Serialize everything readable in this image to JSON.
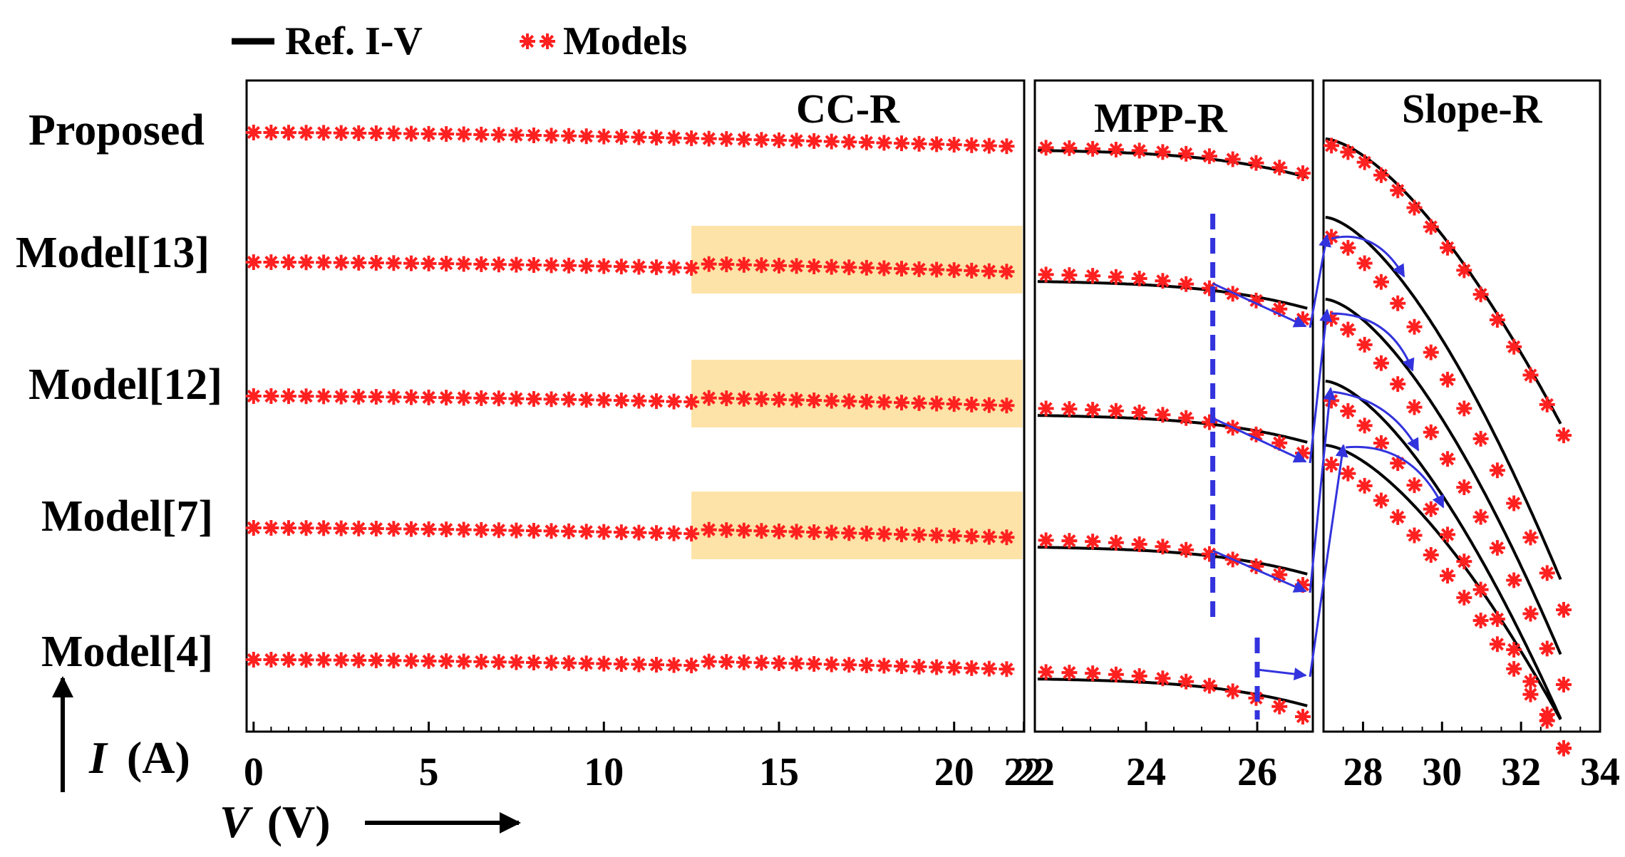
{
  "chart_data": {
    "type": "line",
    "legend": {
      "placement": "top-left",
      "entries": [
        {
          "key": "ref",
          "label": "Ref. I-V",
          "color": "#000000",
          "style": "line"
        },
        {
          "key": "models",
          "label": "Models",
          "color": "#ff2020",
          "style": "star-markers"
        }
      ]
    },
    "xlabel": "V (V)",
    "ylabel": "I (A)",
    "xlabel_var": "V",
    "xlabel_unit": "(V)",
    "ylabel_var": "I",
    "ylabel_unit": "(A)",
    "panels": [
      {
        "title": "CC-R",
        "xlim": [
          -0.2,
          22
        ],
        "ticks": [
          0,
          5,
          10,
          15,
          20,
          22
        ]
      },
      {
        "title": "MPP-R",
        "xlim": [
          22,
          27
        ],
        "ticks": [
          22,
          24,
          26
        ]
      },
      {
        "title": "Slope-R",
        "xlim": [
          27,
          34
        ],
        "ticks": [
          28,
          30,
          32,
          34
        ]
      }
    ],
    "grid": false,
    "y_tick_labels_shown": false,
    "series": [
      {
        "name": "Proposed"
      },
      {
        "name": "Model[13]"
      },
      {
        "name": "Model[12]"
      },
      {
        "name": "Model[7]"
      },
      {
        "name": "Model[4]"
      }
    ],
    "highlight": {
      "x_range": [
        12.5,
        22
      ],
      "panel": "CC-R",
      "rows": [
        "Model[13]",
        "Model[12]",
        "Model[7]"
      ],
      "color": "#fde3a7"
    },
    "dashed_markers": [
      {
        "x": 25.2,
        "panel": "MPP-R",
        "color": "#3333dd",
        "span_rows": [
          "Model[13]",
          "Model[7]"
        ]
      },
      {
        "x": 26.0,
        "panel": "MPP-R",
        "color": "#3333dd",
        "span_rows": [
          "Model[4]"
        ]
      }
    ]
  },
  "colors": {
    "ref": "#000000",
    "models": "#ff2020",
    "arrows": "#3333dd",
    "highlight": "#fde3a7"
  }
}
